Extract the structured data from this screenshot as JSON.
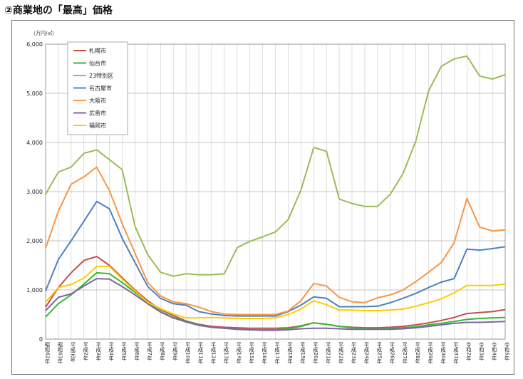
{
  "page": {
    "heading": "②商業地の「最高」価格"
  },
  "chart_data": {
    "type": "line",
    "ylabel": "（万円/㎡）",
    "ylim": [
      0,
      6000
    ],
    "yticks": [
      "0",
      "1,000",
      "2,000",
      "3,000",
      "4,000",
      "5,000",
      "6,000"
    ],
    "ytick_values": [
      0,
      1000,
      2000,
      3000,
      4000,
      5000,
      6000
    ],
    "grid": true,
    "legend_position": "top-left",
    "x": [
      "昭和62年",
      "昭和63年",
      "平成元年",
      "平成2年",
      "平成3年",
      "平成4年",
      "平成5年",
      "平成6年",
      "平成7年",
      "平成8年",
      "平成9年",
      "平成10年",
      "平成11年",
      "平成12年",
      "平成13年",
      "平成14年",
      "平成15年",
      "平成16年",
      "平成17年",
      "平成18年",
      "平成19年",
      "平成20年",
      "平成21年",
      "平成22年",
      "平成23年",
      "平成24年",
      "平成25年",
      "平成26年",
      "平成27年",
      "平成28年",
      "平成29年",
      "平成30年",
      "平成31年",
      "令和2年",
      "令和3年",
      "令和4年",
      "令和5年"
    ],
    "series": [
      {
        "name": "札幌市",
        "color": "#c0504d",
        "values": [
          650,
          1050,
          1350,
          1600,
          1680,
          1500,
          1250,
          1000,
          780,
          600,
          480,
          370,
          300,
          260,
          240,
          230,
          220,
          220,
          220,
          230,
          270,
          330,
          300,
          260,
          240,
          230,
          230,
          240,
          260,
          290,
          330,
          380,
          440,
          520,
          540,
          560,
          600
        ]
      },
      {
        "name": "仙台市",
        "color": "#33bb33",
        "values": [
          450,
          720,
          900,
          1120,
          1350,
          1330,
          1150,
          950,
          750,
          560,
          440,
          360,
          290,
          240,
          220,
          200,
          190,
          190,
          190,
          210,
          260,
          330,
          300,
          260,
          230,
          210,
          210,
          220,
          230,
          250,
          290,
          320,
          360,
          400,
          420,
          430,
          440
        ]
      },
      {
        "name": "23特別区",
        "color": "#9bbb59",
        "values": [
          2950,
          3400,
          3500,
          3780,
          3850,
          3650,
          3450,
          2300,
          1720,
          1360,
          1280,
          1330,
          1310,
          1310,
          1330,
          1860,
          1990,
          2080,
          2180,
          2430,
          3030,
          3900,
          3820,
          2850,
          2760,
          2700,
          2700,
          2950,
          3370,
          4030,
          5050,
          5550,
          5700,
          5760,
          5350,
          5290,
          5380
        ]
      },
      {
        "name": "名古屋市",
        "color": "#4f81bd",
        "values": [
          980,
          1620,
          2000,
          2400,
          2800,
          2650,
          2050,
          1560,
          1070,
          830,
          720,
          690,
          560,
          510,
          480,
          470,
          470,
          470,
          470,
          560,
          690,
          860,
          830,
          660,
          660,
          660,
          670,
          740,
          830,
          930,
          1050,
          1160,
          1230,
          1830,
          1810,
          1840,
          1880
        ]
      },
      {
        "name": "大阪市",
        "color": "#f79646",
        "values": [
          1850,
          2600,
          3150,
          3300,
          3500,
          3020,
          2350,
          1750,
          1150,
          880,
          760,
          720,
          650,
          560,
          510,
          500,
          500,
          500,
          500,
          570,
          780,
          1130,
          1080,
          850,
          760,
          740,
          840,
          900,
          1000,
          1170,
          1360,
          1560,
          1960,
          2860,
          2280,
          2200,
          2220
        ]
      },
      {
        "name": "広島市",
        "color": "#8064a2",
        "values": [
          580,
          850,
          920,
          1080,
          1230,
          1220,
          1070,
          900,
          720,
          550,
          430,
          350,
          280,
          240,
          220,
          200,
          190,
          180,
          180,
          190,
          210,
          220,
          220,
          210,
          200,
          200,
          200,
          200,
          210,
          230,
          260,
          290,
          320,
          340,
          340,
          350,
          360
        ]
      },
      {
        "name": "福岡市",
        "color": "#ffcc00",
        "values": [
          750,
          1050,
          1110,
          1240,
          1480,
          1480,
          1220,
          980,
          750,
          620,
          510,
          430,
          430,
          440,
          430,
          420,
          420,
          420,
          430,
          500,
          610,
          780,
          700,
          590,
          590,
          580,
          580,
          590,
          610,
          670,
          740,
          820,
          940,
          1090,
          1090,
          1090,
          1120
        ]
      }
    ]
  }
}
